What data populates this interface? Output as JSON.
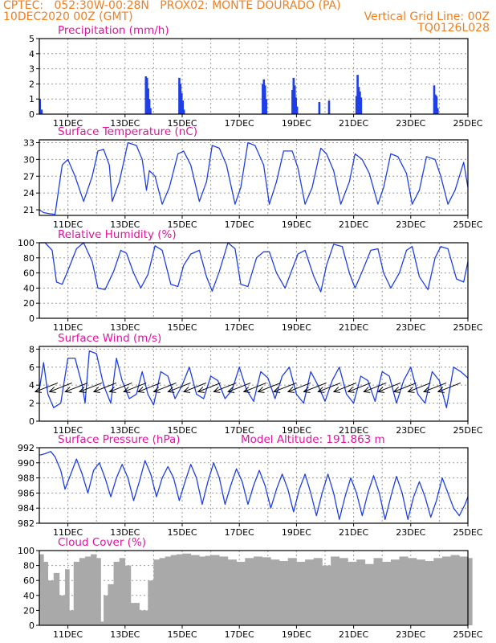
{
  "header": {
    "line1_left": "CPTEC:   052:30W-00:28N   PROX02: MONTE DOURADO (PA)",
    "line2_left": "10DEC2020 00Z (GMT)",
    "line2_right": "Vertical Grid Line: 00Z",
    "line3_right": "TQ0126L028"
  },
  "colors": {
    "header": "#f07f1f",
    "title": "#e0149e",
    "line": "#1f3fe6",
    "bar": "#1f3fe6",
    "cloud": "#a9a9a9"
  },
  "x_ticks": [
    "11DEC",
    "13DEC",
    "15DEC",
    "17DEC",
    "19DEC",
    "21DEC",
    "23DEC",
    "25DEC"
  ],
  "chart_data": [
    {
      "id": "precip",
      "type": "bar",
      "title": "Precipitation (mm/h)",
      "ylim": [
        0,
        5
      ],
      "yticks": [
        0,
        1,
        2,
        3,
        4,
        5
      ],
      "x": [
        0.02,
        0.08,
        3.73,
        3.77,
        3.81,
        3.85,
        3.89,
        4.9,
        4.94,
        4.98,
        5.02,
        5.06,
        7.82,
        7.86,
        7.9,
        7.94,
        8.86,
        8.9,
        8.94,
        8.98,
        9.02,
        9.8,
        10.14,
        11.1,
        11.14,
        11.18,
        11.22,
        11.26,
        13.82,
        13.86,
        13.9,
        13.94
      ],
      "values": [
        1.0,
        0.3,
        2.5,
        2.4,
        1.7,
        1.0,
        0.4,
        2.4,
        2.0,
        1.4,
        0.9,
        0.3,
        2.0,
        2.3,
        1.9,
        1.0,
        1.6,
        2.4,
        1.9,
        1.1,
        0.5,
        0.8,
        0.9,
        1.2,
        2.6,
        1.8,
        1.5,
        1.1,
        1.9,
        1.3,
        1.2,
        0.4
      ]
    },
    {
      "id": "temp",
      "type": "line",
      "title": "Surface Temperature (nC)",
      "ylim": [
        20,
        33.5
      ],
      "yticks": [
        21,
        24,
        27,
        30,
        33
      ],
      "x": [
        0,
        0.15,
        0.35,
        0.55,
        0.8,
        1.0,
        1.25,
        1.55,
        1.85,
        2.05,
        2.25,
        2.45,
        2.55,
        2.8,
        3.1,
        3.4,
        3.6,
        3.75,
        3.85,
        4.05,
        4.3,
        4.55,
        4.85,
        5.05,
        5.3,
        5.6,
        5.85,
        6.05,
        6.3,
        6.55,
        6.85,
        7.05,
        7.3,
        7.55,
        7.85,
        8.05,
        8.3,
        8.55,
        8.85,
        9.05,
        9.3,
        9.55,
        9.85,
        10.05,
        10.3,
        10.55,
        10.85,
        11.05,
        11.3,
        11.55,
        11.85,
        12.05,
        12.3,
        12.55,
        12.85,
        13.05,
        13.3,
        13.55,
        13.85,
        14.05,
        14.3,
        14.55,
        14.85,
        15.0
      ],
      "values": [
        21,
        20.5,
        20.3,
        20.2,
        29,
        30,
        27,
        22.5,
        27,
        31.5,
        31.8,
        29,
        22.5,
        26,
        33,
        32.5,
        30,
        24.5,
        28,
        27,
        22,
        25,
        31,
        31.5,
        29,
        22.5,
        26,
        32.5,
        32,
        29,
        22,
        25,
        33,
        32.5,
        29,
        22,
        26,
        31.5,
        31.5,
        28.5,
        22,
        25,
        32,
        31,
        28,
        22,
        26,
        31,
        30,
        27.5,
        22,
        25,
        31,
        30.5,
        27.5,
        22,
        24.5,
        30.5,
        30,
        27,
        22,
        24.5,
        29.5,
        25
      ]
    },
    {
      "id": "rh",
      "type": "line",
      "title": "Relative Humidity (%)",
      "ylim": [
        0,
        100
      ],
      "yticks": [
        0,
        20,
        40,
        60,
        80,
        100
      ],
      "x": [
        0,
        0.2,
        0.45,
        0.6,
        0.8,
        1.05,
        1.3,
        1.55,
        1.85,
        2.05,
        2.3,
        2.6,
        2.85,
        3.05,
        3.3,
        3.55,
        3.8,
        4.05,
        4.3,
        4.6,
        4.85,
        5.05,
        5.3,
        5.6,
        5.85,
        6.05,
        6.3,
        6.6,
        6.85,
        7.05,
        7.3,
        7.6,
        7.85,
        8.05,
        8.3,
        8.6,
        8.85,
        9.05,
        9.3,
        9.6,
        9.85,
        10.05,
        10.3,
        10.6,
        10.85,
        11.05,
        11.3,
        11.6,
        11.85,
        12.05,
        12.3,
        12.6,
        12.85,
        13.05,
        13.3,
        13.6,
        13.85,
        14.05,
        14.3,
        14.6,
        14.85,
        15.0
      ],
      "values": [
        100,
        100,
        90,
        48,
        45,
        68,
        92,
        100,
        75,
        40,
        38,
        62,
        90,
        86,
        60,
        40,
        58,
        96,
        90,
        45,
        42,
        70,
        85,
        90,
        55,
        36,
        62,
        100,
        92,
        45,
        42,
        80,
        88,
        88,
        60,
        40,
        65,
        85,
        90,
        56,
        35,
        70,
        98,
        95,
        60,
        40,
        62,
        90,
        92,
        60,
        40,
        60,
        90,
        95,
        55,
        38,
        80,
        95,
        92,
        52,
        48,
        75
      ]
    },
    {
      "id": "wind",
      "type": "line",
      "title": "Surface Wind (m/s)",
      "ylim": [
        0,
        8.3
      ],
      "yticks": [
        0,
        2,
        4,
        6,
        8
      ],
      "x": [
        0,
        0.15,
        0.3,
        0.5,
        0.75,
        1.0,
        1.25,
        1.5,
        1.6,
        1.75,
        2.0,
        2.25,
        2.5,
        2.7,
        2.9,
        3.15,
        3.4,
        3.6,
        3.8,
        4.0,
        4.25,
        4.5,
        4.75,
        5.0,
        5.25,
        5.5,
        5.75,
        6.0,
        6.25,
        6.5,
        6.75,
        7.0,
        7.25,
        7.5,
        7.75,
        8.0,
        8.25,
        8.5,
        8.75,
        9.0,
        9.25,
        9.5,
        9.75,
        10.0,
        10.25,
        10.5,
        10.75,
        11.0,
        11.25,
        11.5,
        11.75,
        12.0,
        12.25,
        12.5,
        12.75,
        13.0,
        13.25,
        13.5,
        13.75,
        14.0,
        14.25,
        14.5,
        14.75,
        15.0
      ],
      "values": [
        3.5,
        6.5,
        3,
        1.5,
        2,
        7,
        7,
        4,
        2,
        7.8,
        7.5,
        4,
        2,
        7,
        4.5,
        2.5,
        3,
        5.5,
        3,
        1.8,
        5.5,
        5,
        2.5,
        4,
        6,
        3,
        2.5,
        5,
        4.5,
        2.5,
        3.5,
        6,
        3.5,
        2.2,
        5.5,
        4.8,
        2.5,
        5,
        6,
        3,
        2,
        5.5,
        4,
        2.2,
        4.5,
        6,
        3,
        2,
        5,
        4.5,
        2.2,
        5.5,
        5,
        2,
        4.5,
        6,
        3,
        2,
        5.5,
        4.5,
        1.5,
        6,
        5.5,
        4.8
      ]
    },
    {
      "id": "pres",
      "type": "line",
      "title": "Surface Pressure (hPa)",
      "annotation": "Model Altitude: 191.863 m",
      "ylim": [
        982,
        992
      ],
      "yticks": [
        982,
        984,
        986,
        988,
        990,
        992
      ],
      "x": [
        0,
        0.2,
        0.4,
        0.55,
        0.75,
        0.9,
        1.1,
        1.3,
        1.5,
        1.7,
        1.9,
        2.1,
        2.3,
        2.5,
        2.7,
        2.9,
        3.1,
        3.3,
        3.5,
        3.7,
        3.9,
        4.1,
        4.3,
        4.5,
        4.7,
        4.9,
        5.1,
        5.3,
        5.5,
        5.7,
        5.9,
        6.1,
        6.3,
        6.5,
        6.7,
        6.9,
        7.1,
        7.3,
        7.5,
        7.7,
        7.9,
        8.1,
        8.3,
        8.5,
        8.7,
        8.9,
        9.1,
        9.3,
        9.5,
        9.7,
        9.9,
        10.1,
        10.3,
        10.5,
        10.7,
        10.9,
        11.1,
        11.3,
        11.5,
        11.7,
        11.9,
        12.1,
        12.3,
        12.5,
        12.7,
        12.9,
        13.1,
        13.3,
        13.5,
        13.7,
        13.9,
        14.1,
        14.3,
        14.5,
        14.7,
        14.9,
        15.0
      ],
      "values": [
        991,
        991.2,
        991.5,
        990.8,
        989,
        986.5,
        988.5,
        990.5,
        988.5,
        986,
        989,
        990,
        988,
        985.5,
        988,
        989.8,
        988,
        985,
        987.5,
        990.3,
        988.5,
        985.5,
        988,
        989.5,
        988,
        985,
        987.5,
        989.8,
        988,
        984.5,
        987.5,
        990,
        988,
        984.5,
        987,
        989.2,
        987.5,
        984.5,
        987,
        989,
        987,
        984,
        986.5,
        988.5,
        986.5,
        983.5,
        986.5,
        988.5,
        986,
        983,
        986,
        988.5,
        986,
        982.5,
        985.5,
        988,
        986,
        983,
        986,
        988.3,
        986,
        982.5,
        985.5,
        988.2,
        986,
        982.5,
        985.5,
        987.5,
        985.5,
        982.8,
        985,
        988,
        986,
        984,
        983,
        984.5,
        985.5
      ]
    },
    {
      "id": "cloud",
      "type": "area",
      "title": "Cloud Cover (%)",
      "ylim": [
        0,
        100
      ],
      "yticks": [
        0,
        20,
        40,
        60,
        80,
        100
      ],
      "x": [
        0,
        0.15,
        0.3,
        0.5,
        0.7,
        0.9,
        1.0,
        1.2,
        1.4,
        1.6,
        1.8,
        2.0,
        2.1,
        2.25,
        2.4,
        2.6,
        2.8,
        3.0,
        3.2,
        3.5,
        3.8,
        4.0,
        4.2,
        4.4,
        4.6,
        4.8,
        5.0,
        5.3,
        5.6,
        5.8,
        6.0,
        6.3,
        6.6,
        6.9,
        7.2,
        7.5,
        7.8,
        8.1,
        8.4,
        8.7,
        9.0,
        9.3,
        9.6,
        9.9,
        10.2,
        10.5,
        10.8,
        11.1,
        11.4,
        11.7,
        12.0,
        12.3,
        12.6,
        12.9,
        13.2,
        13.5,
        13.8,
        14.1,
        14.4,
        14.7,
        15.0
      ],
      "values": [
        95,
        85,
        60,
        70,
        40,
        75,
        20,
        85,
        90,
        92,
        95,
        90,
        5,
        40,
        55,
        85,
        90,
        80,
        30,
        20,
        60,
        88,
        90,
        92,
        94,
        95,
        96,
        94,
        92,
        93,
        94,
        92,
        88,
        85,
        90,
        92,
        91,
        88,
        86,
        90,
        85,
        88,
        90,
        80,
        92,
        90,
        85,
        88,
        82,
        90,
        85,
        88,
        92,
        90,
        88,
        86,
        90,
        92,
        94,
        92,
        90
      ]
    }
  ],
  "wind_arrow_x": [
    0.25,
    0.75,
    1.3,
    1.8,
    2.3,
    2.85,
    3.35,
    3.85,
    4.4,
    4.9,
    5.45,
    5.95,
    6.5,
    7.0,
    7.55,
    8.05,
    8.6,
    9.1,
    9.65,
    10.15,
    10.7,
    11.2,
    11.75,
    12.25,
    12.8,
    13.3,
    13.85,
    14.35
  ]
}
